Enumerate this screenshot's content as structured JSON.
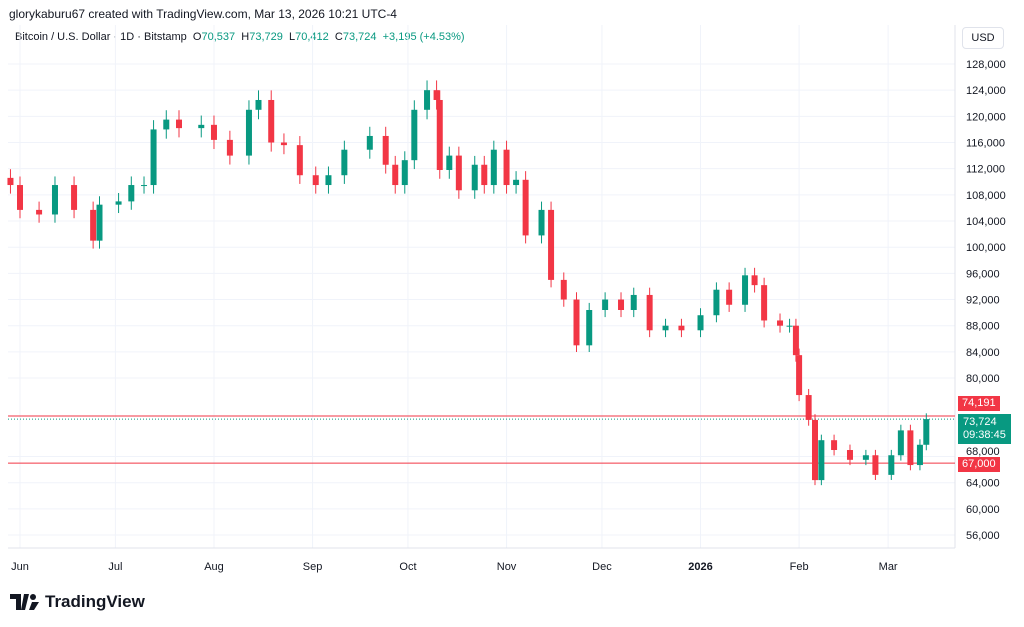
{
  "header": {
    "credit": "glorykaburu67 created with TradingView.com, Mar 13, 2026 10:21 UTC-4"
  },
  "legend": {
    "symbol": "Bitcoin / U.S. Dollar · 1D · Bitstamp",
    "o_label": "O",
    "o": "70,537",
    "h_label": "H",
    "h": "73,729",
    "l_label": "L",
    "l": "70,412",
    "c_label": "C",
    "c": "73,724",
    "change": "+3,195 (+4.53%)"
  },
  "currency_button": "USD",
  "brand": "TradingView",
  "price_tags": {
    "line_high": "74,191",
    "current": "73,724",
    "countdown": "09:38:45",
    "line_low": "67,000"
  },
  "colors": {
    "up": "#089981",
    "down": "#f23645",
    "line": "#f23645"
  },
  "chart_data": {
    "type": "candlestick",
    "y_ticks": [
      "128,000",
      "124,000",
      "120,000",
      "116,000",
      "112,000",
      "108,000",
      "104,000",
      "100,000",
      "96,000",
      "92,000",
      "88,000",
      "84,000",
      "80,000",
      "68,000",
      "64,000",
      "60,000",
      "56,000"
    ],
    "ylim": [
      54000,
      132000
    ],
    "x_ticks": [
      {
        "label": "Jun",
        "date": "2025-06-01"
      },
      {
        "label": "Jul",
        "date": "2025-07-01"
      },
      {
        "label": "Aug",
        "date": "2025-08-01"
      },
      {
        "label": "Sep",
        "date": "2025-09-01"
      },
      {
        "label": "Oct",
        "date": "2025-10-01"
      },
      {
        "label": "Nov",
        "date": "2025-11-01"
      },
      {
        "label": "Dec",
        "date": "2025-12-01"
      },
      {
        "label": "2026",
        "date": "2026-01-01",
        "bold": true
      },
      {
        "label": "Feb",
        "date": "2026-02-01"
      },
      {
        "label": "Mar",
        "date": "2026-03-01"
      }
    ],
    "horizontal_lines": [
      74191,
      67000
    ],
    "last_price": 73724,
    "closes": [
      [
        "2025-05-29",
        109500
      ],
      [
        "2025-06-01",
        105700
      ],
      [
        "2025-06-07",
        105000
      ],
      [
        "2025-06-12",
        109500
      ],
      [
        "2025-06-18",
        105700
      ],
      [
        "2025-06-24",
        101000
      ],
      [
        "2025-06-26",
        106500
      ],
      [
        "2025-07-02",
        107000
      ],
      [
        "2025-07-06",
        109500
      ],
      [
        "2025-07-10",
        109500
      ],
      [
        "2025-07-13",
        118000
      ],
      [
        "2025-07-17",
        119500
      ],
      [
        "2025-07-21",
        118200
      ],
      [
        "2025-07-28",
        118700
      ],
      [
        "2025-08-01",
        116400
      ],
      [
        "2025-08-06",
        114000
      ],
      [
        "2025-08-12",
        121000
      ],
      [
        "2025-08-15",
        122500
      ],
      [
        "2025-08-19",
        116000
      ],
      [
        "2025-08-23",
        115600
      ],
      [
        "2025-08-28",
        111000
      ],
      [
        "2025-09-02",
        109500
      ],
      [
        "2025-09-06",
        111000
      ],
      [
        "2025-09-11",
        114900
      ],
      [
        "2025-09-19",
        117000
      ],
      [
        "2025-09-24",
        112600
      ],
      [
        "2025-09-27",
        109500
      ],
      [
        "2025-09-30",
        113300
      ],
      [
        "2025-10-03",
        121000
      ],
      [
        "2025-10-07",
        124000
      ],
      [
        "2025-10-10",
        122500
      ],
      [
        "2025-10-11",
        111800
      ],
      [
        "2025-10-14",
        114000
      ],
      [
        "2025-10-17",
        108700
      ],
      [
        "2025-10-22",
        112600
      ],
      [
        "2025-10-25",
        109500
      ],
      [
        "2025-10-28",
        114900
      ],
      [
        "2025-11-01",
        109500
      ],
      [
        "2025-11-04",
        110300
      ],
      [
        "2025-11-07",
        101800
      ],
      [
        "2025-11-12",
        105700
      ],
      [
        "2025-11-15",
        95000
      ],
      [
        "2025-11-19",
        92000
      ],
      [
        "2025-11-23",
        85000
      ],
      [
        "2025-11-27",
        90400
      ],
      [
        "2025-12-02",
        92000
      ],
      [
        "2025-12-07",
        90400
      ],
      [
        "2025-12-11",
        92700
      ],
      [
        "2025-12-16",
        87300
      ],
      [
        "2025-12-21",
        88000
      ],
      [
        "2025-12-26",
        87300
      ],
      [
        "2026-01-01",
        89600
      ],
      [
        "2026-01-06",
        93500
      ],
      [
        "2026-01-10",
        91200
      ],
      [
        "2026-01-15",
        95700
      ],
      [
        "2026-01-18",
        94200
      ],
      [
        "2026-01-21",
        88800
      ],
      [
        "2026-01-26",
        88000
      ],
      [
        "2026-01-29",
        88000
      ],
      [
        "2026-01-31",
        83500
      ],
      [
        "2026-02-01",
        77400
      ],
      [
        "2026-02-04",
        73600
      ],
      [
        "2026-02-06",
        64400
      ],
      [
        "2026-02-08",
        70500
      ],
      [
        "2026-02-12",
        69000
      ],
      [
        "2026-02-17",
        67500
      ],
      [
        "2026-02-22",
        68200
      ],
      [
        "2026-02-25",
        65200
      ],
      [
        "2026-03-02",
        68200
      ],
      [
        "2026-03-05",
        72000
      ],
      [
        "2026-03-08",
        66700
      ],
      [
        "2026-03-11",
        69800
      ],
      [
        "2026-03-13",
        73724
      ]
    ]
  }
}
